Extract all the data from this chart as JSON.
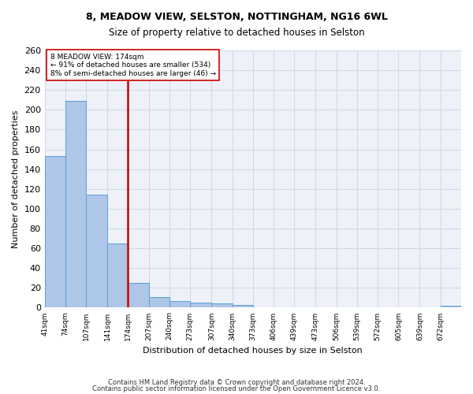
{
  "title1": "8, MEADOW VIEW, SELSTON, NOTTINGHAM, NG16 6WL",
  "title2": "Size of property relative to detached houses in Selston",
  "xlabel": "Distribution of detached houses by size in Selston",
  "ylabel": "Number of detached properties",
  "footer1": "Contains HM Land Registry data © Crown copyright and database right 2024.",
  "footer2": "Contains public sector information licensed under the Open Government Licence v3.0.",
  "annotation_line1": "8 MEADOW VIEW: 174sqm",
  "annotation_line2": "← 91% of detached houses are smaller (534)",
  "annotation_line3": "8% of semi-detached houses are larger (46) →",
  "property_size": 174,
  "bin_edges": [
    41,
    74,
    107,
    141,
    174,
    207,
    240,
    273,
    307,
    340,
    373,
    406,
    439,
    473,
    506,
    539,
    572,
    605,
    639,
    672,
    705
  ],
  "bar_values": [
    153,
    209,
    114,
    65,
    25,
    11,
    7,
    5,
    4,
    3,
    0,
    0,
    0,
    0,
    0,
    0,
    0,
    0,
    0,
    2
  ],
  "bar_color": "#aec6e8",
  "bar_edge_color": "#5a9fd4",
  "vline_color": "#cc0000",
  "vline_x": 174,
  "annotation_box_color": "#cc0000",
  "ylim": [
    0,
    260
  ],
  "yticks": [
    0,
    20,
    40,
    60,
    80,
    100,
    120,
    140,
    160,
    180,
    200,
    220,
    240,
    260
  ],
  "grid_color": "#d0d8e8",
  "bg_color": "#eef2f8"
}
